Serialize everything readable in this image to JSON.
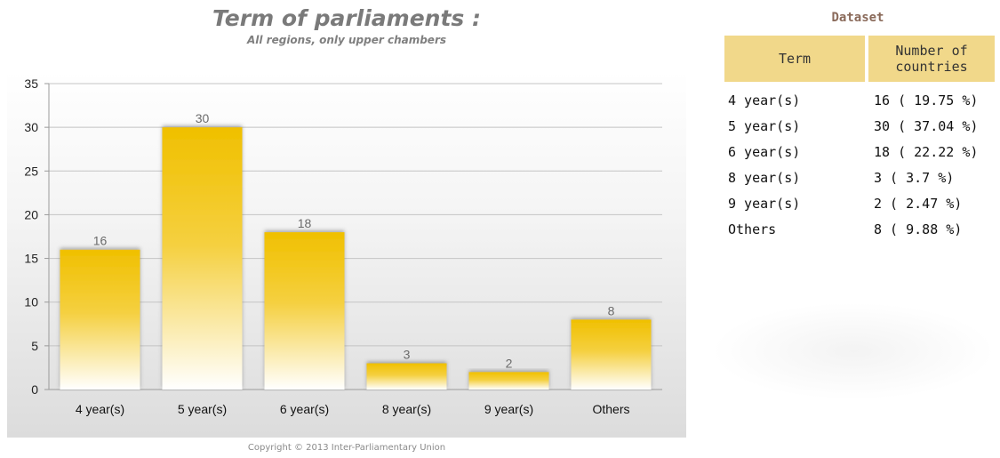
{
  "chart_data": {
    "type": "bar",
    "title": "Term of parliaments :",
    "subtitle": "All regions, only upper chambers",
    "categories": [
      "4 year(s)",
      "5 year(s)",
      "6 year(s)",
      "8 year(s)",
      "9 year(s)",
      "Others"
    ],
    "values": [
      16,
      30,
      18,
      3,
      2,
      8
    ],
    "data_labels": [
      "16",
      "30",
      "18",
      "3",
      "2",
      "8"
    ],
    "y_ticks": [
      "0",
      "5",
      "10",
      "15",
      "20",
      "25",
      "30",
      "35"
    ],
    "ylim": [
      0,
      35
    ],
    "grid": true,
    "bar_color": "#f0c000",
    "xlabel": "",
    "ylabel": ""
  },
  "copyright": "Copyright © 2013 Inter-Parliamentary Union",
  "dataset": {
    "title": "Dataset",
    "headers": [
      "Term",
      "Number of countries"
    ],
    "rows": [
      [
        "4 year(s)",
        "16 ( 19.75 %)"
      ],
      [
        "5 year(s)",
        "30 ( 37.04 %)"
      ],
      [
        "6 year(s)",
        "18 ( 22.22 %)"
      ],
      [
        "8 year(s)",
        "3 ( 3.7 %)"
      ],
      [
        "9 year(s)",
        "2 ( 2.47 %)"
      ],
      [
        "Others",
        "8 ( 9.88 %)"
      ]
    ],
    "header_color": "#f1d88a"
  }
}
